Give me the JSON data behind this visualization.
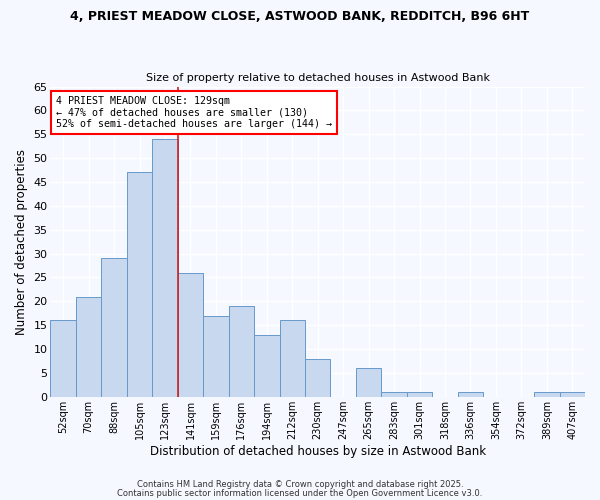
{
  "title1": "4, PRIEST MEADOW CLOSE, ASTWOOD BANK, REDDITCH, B96 6HT",
  "title2": "Size of property relative to detached houses in Astwood Bank",
  "xlabel": "Distribution of detached houses by size in Astwood Bank",
  "ylabel": "Number of detached properties",
  "categories": [
    "52sqm",
    "70sqm",
    "88sqm",
    "105sqm",
    "123sqm",
    "141sqm",
    "159sqm",
    "176sqm",
    "194sqm",
    "212sqm",
    "230sqm",
    "247sqm",
    "265sqm",
    "283sqm",
    "301sqm",
    "318sqm",
    "336sqm",
    "354sqm",
    "372sqm",
    "389sqm",
    "407sqm"
  ],
  "values": [
    16,
    21,
    29,
    47,
    54,
    26,
    17,
    19,
    13,
    16,
    8,
    0,
    6,
    1,
    1,
    0,
    1,
    0,
    0,
    1,
    1
  ],
  "bar_color": "#c8d8ef",
  "bar_edge_color": "#6699cc",
  "background_color": "#f5f8ff",
  "grid_color": "#ffffff",
  "ylim": [
    0,
    65
  ],
  "yticks": [
    0,
    5,
    10,
    15,
    20,
    25,
    30,
    35,
    40,
    45,
    50,
    55,
    60,
    65
  ],
  "red_line_index": 4.5,
  "annotation_text": "4 PRIEST MEADOW CLOSE: 129sqm\n← 47% of detached houses are smaller (130)\n52% of semi-detached houses are larger (144) →",
  "footer1": "Contains HM Land Registry data © Crown copyright and database right 2025.",
  "footer2": "Contains public sector information licensed under the Open Government Licence v3.0."
}
